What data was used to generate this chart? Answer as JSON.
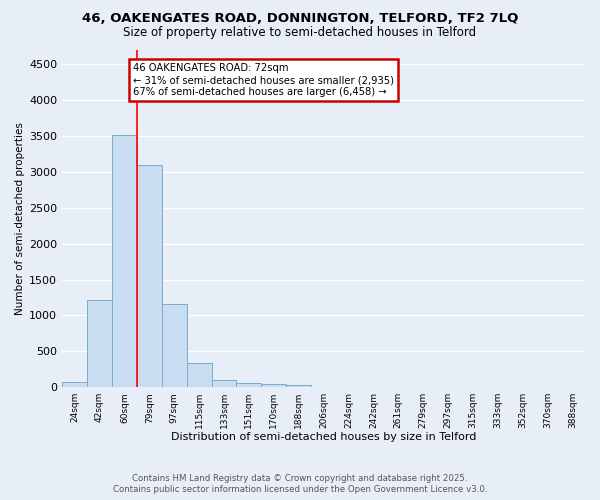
{
  "title_line1": "46, OAKENGATES ROAD, DONNINGTON, TELFORD, TF2 7LQ",
  "title_line2": "Size of property relative to semi-detached houses in Telford",
  "xlabel": "Distribution of semi-detached houses by size in Telford",
  "ylabel": "Number of semi-detached properties",
  "categories": [
    "24sqm",
    "42sqm",
    "60sqm",
    "79sqm",
    "97sqm",
    "115sqm",
    "133sqm",
    "151sqm",
    "170sqm",
    "188sqm",
    "206sqm",
    "224sqm",
    "242sqm",
    "261sqm",
    "279sqm",
    "297sqm",
    "315sqm",
    "333sqm",
    "352sqm",
    "370sqm",
    "388sqm"
  ],
  "values": [
    75,
    1220,
    3520,
    3100,
    1160,
    340,
    105,
    60,
    40,
    30,
    0,
    0,
    0,
    0,
    0,
    0,
    0,
    0,
    0,
    0,
    0
  ],
  "bar_color": "#c8ddf0",
  "bar_edge_color": "#7aaacf",
  "red_line_x": 2.5,
  "annotation_title": "46 OAKENGATES ROAD: 72sqm",
  "annotation_line2": "← 31% of semi-detached houses are smaller (2,935)",
  "annotation_line3": "67% of semi-detached houses are larger (6,458) →",
  "ylim": [
    0,
    4700
  ],
  "yticks": [
    0,
    500,
    1000,
    1500,
    2000,
    2500,
    3000,
    3500,
    4000,
    4500
  ],
  "footer_line1": "Contains HM Land Registry data © Crown copyright and database right 2025.",
  "footer_line2": "Contains public sector information licensed under the Open Government Licence v3.0.",
  "bg_color": "#e8eef8",
  "grid_color": "#ffffff",
  "annotation_box_edge": "#cc0000"
}
